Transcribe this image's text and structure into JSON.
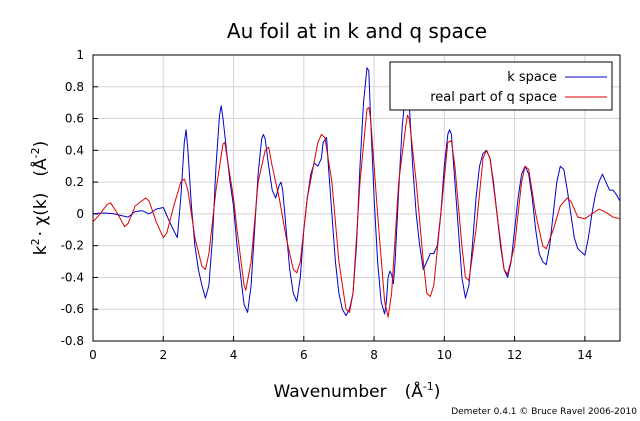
{
  "chart_data": {
    "type": "line",
    "title": "Au foil at in k and q space",
    "xlabel": {
      "main": "Wavenumber",
      "unit_prefix": "(Å",
      "unit_exp": "-1",
      "unit_suffix": ")"
    },
    "ylabel": {
      "k": "k",
      "k_exp": "2",
      "chi": "· χ(k)",
      "unit_prefix": "(Å",
      "unit_exp": "-2",
      "unit_suffix": ")"
    },
    "xlim": [
      0,
      15
    ],
    "ylim": [
      -0.8,
      1.0
    ],
    "xticks": [
      0,
      2,
      4,
      6,
      8,
      10,
      12,
      14
    ],
    "yticks": [
      -0.8,
      -0.6,
      -0.4,
      -0.2,
      0,
      0.2,
      0.4,
      0.6,
      0.8,
      1
    ],
    "grid": true,
    "legend_position": "top-right",
    "series": [
      {
        "name": "k space",
        "color": "#0000cc",
        "points": [
          [
            0,
            0
          ],
          [
            0.2,
            0.005
          ],
          [
            0.4,
            0.005
          ],
          [
            0.6,
            0
          ],
          [
            0.8,
            -0.01
          ],
          [
            1.0,
            -0.02
          ],
          [
            1.2,
            0.015
          ],
          [
            1.4,
            0.02
          ],
          [
            1.6,
            0
          ],
          [
            1.8,
            0.03
          ],
          [
            2.0,
            0.04
          ],
          [
            2.2,
            -0.06
          ],
          [
            2.4,
            -0.15
          ],
          [
            2.5,
            0.1
          ],
          [
            2.6,
            0.45
          ],
          [
            2.65,
            0.53
          ],
          [
            2.7,
            0.4
          ],
          [
            2.8,
            0.05
          ],
          [
            2.9,
            -0.2
          ],
          [
            3.0,
            -0.35
          ],
          [
            3.1,
            -0.45
          ],
          [
            3.2,
            -0.53
          ],
          [
            3.3,
            -0.45
          ],
          [
            3.4,
            -0.15
          ],
          [
            3.5,
            0.3
          ],
          [
            3.6,
            0.62
          ],
          [
            3.65,
            0.68
          ],
          [
            3.7,
            0.6
          ],
          [
            3.8,
            0.4
          ],
          [
            3.9,
            0.2
          ],
          [
            4.0,
            0.05
          ],
          [
            4.1,
            -0.2
          ],
          [
            4.3,
            -0.57
          ],
          [
            4.4,
            -0.62
          ],
          [
            4.5,
            -0.45
          ],
          [
            4.6,
            -0.1
          ],
          [
            4.7,
            0.25
          ],
          [
            4.8,
            0.47
          ],
          [
            4.85,
            0.5
          ],
          [
            4.9,
            0.47
          ],
          [
            5.0,
            0.3
          ],
          [
            5.1,
            0.15
          ],
          [
            5.2,
            0.1
          ],
          [
            5.3,
            0.18
          ],
          [
            5.35,
            0.2
          ],
          [
            5.4,
            0.15
          ],
          [
            5.5,
            -0.1
          ],
          [
            5.6,
            -0.35
          ],
          [
            5.7,
            -0.5
          ],
          [
            5.8,
            -0.55
          ],
          [
            5.9,
            -0.4
          ],
          [
            6.0,
            -0.1
          ],
          [
            6.1,
            0.1
          ],
          [
            6.2,
            0.25
          ],
          [
            6.3,
            0.32
          ],
          [
            6.4,
            0.3
          ],
          [
            6.5,
            0.35
          ],
          [
            6.55,
            0.45
          ],
          [
            6.65,
            0.48
          ],
          [
            6.7,
            0.3
          ],
          [
            6.8,
            0.0
          ],
          [
            6.9,
            -0.3
          ],
          [
            7.0,
            -0.5
          ],
          [
            7.1,
            -0.6
          ],
          [
            7.2,
            -0.64
          ],
          [
            7.3,
            -0.6
          ],
          [
            7.4,
            -0.5
          ],
          [
            7.5,
            -0.2
          ],
          [
            7.6,
            0.3
          ],
          [
            7.7,
            0.7
          ],
          [
            7.8,
            0.92
          ],
          [
            7.85,
            0.9
          ],
          [
            7.9,
            0.6
          ],
          [
            8.0,
            0.1
          ],
          [
            8.1,
            -0.3
          ],
          [
            8.2,
            -0.55
          ],
          [
            8.3,
            -0.63
          ],
          [
            8.35,
            -0.55
          ],
          [
            8.4,
            -0.4
          ],
          [
            8.45,
            -0.36
          ],
          [
            8.5,
            -0.38
          ],
          [
            8.55,
            -0.44
          ],
          [
            8.6,
            -0.3
          ],
          [
            8.7,
            0.15
          ],
          [
            8.8,
            0.55
          ],
          [
            8.9,
            0.78
          ],
          [
            8.95,
            0.8
          ],
          [
            9.0,
            0.7
          ],
          [
            9.1,
            0.3
          ],
          [
            9.2,
            0.0
          ],
          [
            9.3,
            -0.2
          ],
          [
            9.4,
            -0.35
          ],
          [
            9.5,
            -0.3
          ],
          [
            9.6,
            -0.25
          ],
          [
            9.7,
            -0.25
          ],
          [
            9.8,
            -0.2
          ],
          [
            9.9,
            0.0
          ],
          [
            10.0,
            0.3
          ],
          [
            10.1,
            0.5
          ],
          [
            10.15,
            0.53
          ],
          [
            10.2,
            0.5
          ],
          [
            10.3,
            0.2
          ],
          [
            10.4,
            -0.1
          ],
          [
            10.5,
            -0.4
          ],
          [
            10.6,
            -0.53
          ],
          [
            10.7,
            -0.45
          ],
          [
            10.8,
            -0.2
          ],
          [
            10.9,
            0.1
          ],
          [
            11.0,
            0.3
          ],
          [
            11.1,
            0.38
          ],
          [
            11.2,
            0.4
          ],
          [
            11.3,
            0.35
          ],
          [
            11.4,
            0.2
          ],
          [
            11.5,
            0.0
          ],
          [
            11.6,
            -0.2
          ],
          [
            11.7,
            -0.35
          ],
          [
            11.8,
            -0.4
          ],
          [
            11.9,
            -0.3
          ],
          [
            12.0,
            -0.1
          ],
          [
            12.1,
            0.1
          ],
          [
            12.2,
            0.25
          ],
          [
            12.3,
            0.3
          ],
          [
            12.4,
            0.25
          ],
          [
            12.5,
            0.1
          ],
          [
            12.6,
            -0.1
          ],
          [
            12.7,
            -0.25
          ],
          [
            12.8,
            -0.3
          ],
          [
            12.9,
            -0.32
          ],
          [
            13.0,
            -0.2
          ],
          [
            13.1,
            0.0
          ],
          [
            13.2,
            0.2
          ],
          [
            13.3,
            0.3
          ],
          [
            13.4,
            0.28
          ],
          [
            13.5,
            0.15
          ],
          [
            13.6,
            0.0
          ],
          [
            13.7,
            -0.15
          ],
          [
            13.8,
            -0.22
          ],
          [
            14.0,
            -0.26
          ],
          [
            14.1,
            -0.15
          ],
          [
            14.2,
            0.0
          ],
          [
            14.3,
            0.12
          ],
          [
            14.4,
            0.2
          ],
          [
            14.5,
            0.25
          ],
          [
            14.6,
            0.2
          ],
          [
            14.7,
            0.15
          ],
          [
            14.8,
            0.15
          ],
          [
            14.9,
            0.12
          ],
          [
            15.0,
            0.08
          ]
        ]
      },
      {
        "name": "real part of q space",
        "color": "#dd0000",
        "points": [
          [
            0,
            -0.05
          ],
          [
            0.2,
            0.0
          ],
          [
            0.4,
            0.06
          ],
          [
            0.5,
            0.07
          ],
          [
            0.7,
            0.0
          ],
          [
            0.9,
            -0.08
          ],
          [
            1.0,
            -0.06
          ],
          [
            1.2,
            0.05
          ],
          [
            1.5,
            0.1
          ],
          [
            1.6,
            0.08
          ],
          [
            1.8,
            -0.05
          ],
          [
            2.0,
            -0.15
          ],
          [
            2.1,
            -0.12
          ],
          [
            2.3,
            0.05
          ],
          [
            2.5,
            0.2
          ],
          [
            2.6,
            0.22
          ],
          [
            2.7,
            0.15
          ],
          [
            2.9,
            -0.15
          ],
          [
            3.1,
            -0.33
          ],
          [
            3.2,
            -0.35
          ],
          [
            3.3,
            -0.25
          ],
          [
            3.5,
            0.15
          ],
          [
            3.7,
            0.44
          ],
          [
            3.75,
            0.45
          ],
          [
            3.8,
            0.38
          ],
          [
            4.0,
            0.1
          ],
          [
            4.1,
            -0.1
          ],
          [
            4.3,
            -0.45
          ],
          [
            4.35,
            -0.48
          ],
          [
            4.5,
            -0.3
          ],
          [
            4.7,
            0.2
          ],
          [
            4.9,
            0.4
          ],
          [
            5.0,
            0.42
          ],
          [
            5.1,
            0.3
          ],
          [
            5.3,
            0.1
          ],
          [
            5.5,
            -0.15
          ],
          [
            5.7,
            -0.35
          ],
          [
            5.8,
            -0.37
          ],
          [
            5.9,
            -0.3
          ],
          [
            6.1,
            0.1
          ],
          [
            6.4,
            0.45
          ],
          [
            6.5,
            0.5
          ],
          [
            6.6,
            0.48
          ],
          [
            6.8,
            0.2
          ],
          [
            7.0,
            -0.3
          ],
          [
            7.2,
            -0.6
          ],
          [
            7.3,
            -0.62
          ],
          [
            7.4,
            -0.5
          ],
          [
            7.6,
            0.2
          ],
          [
            7.8,
            0.66
          ],
          [
            7.85,
            0.67
          ],
          [
            7.9,
            0.6
          ],
          [
            8.1,
            0.0
          ],
          [
            8.3,
            -0.55
          ],
          [
            8.4,
            -0.65
          ],
          [
            8.5,
            -0.5
          ],
          [
            8.7,
            0.2
          ],
          [
            8.9,
            0.55
          ],
          [
            8.95,
            0.62
          ],
          [
            9.0,
            0.6
          ],
          [
            9.2,
            0.2
          ],
          [
            9.4,
            -0.3
          ],
          [
            9.5,
            -0.5
          ],
          [
            9.6,
            -0.52
          ],
          [
            9.7,
            -0.45
          ],
          [
            9.9,
            0.0
          ],
          [
            10.1,
            0.45
          ],
          [
            10.2,
            0.46
          ],
          [
            10.3,
            0.3
          ],
          [
            10.5,
            -0.2
          ],
          [
            10.6,
            -0.4
          ],
          [
            10.7,
            -0.42
          ],
          [
            10.9,
            -0.1
          ],
          [
            11.1,
            0.35
          ],
          [
            11.2,
            0.4
          ],
          [
            11.3,
            0.35
          ],
          [
            11.5,
            0.0
          ],
          [
            11.7,
            -0.35
          ],
          [
            11.8,
            -0.38
          ],
          [
            12.0,
            -0.2
          ],
          [
            12.2,
            0.2
          ],
          [
            12.3,
            0.3
          ],
          [
            12.4,
            0.28
          ],
          [
            12.6,
            0.0
          ],
          [
            12.8,
            -0.2
          ],
          [
            12.9,
            -0.22
          ],
          [
            13.1,
            -0.1
          ],
          [
            13.3,
            0.05
          ],
          [
            13.5,
            0.1
          ],
          [
            13.6,
            0.08
          ],
          [
            13.8,
            -0.02
          ],
          [
            14.0,
            -0.03
          ],
          [
            14.2,
            0.0
          ],
          [
            14.4,
            0.03
          ],
          [
            14.6,
            0.01
          ],
          [
            14.8,
            -0.02
          ],
          [
            15.0,
            -0.03
          ]
        ]
      }
    ],
    "credit": "Demeter 0.4.1 © Bruce Ravel 2006-2010"
  }
}
